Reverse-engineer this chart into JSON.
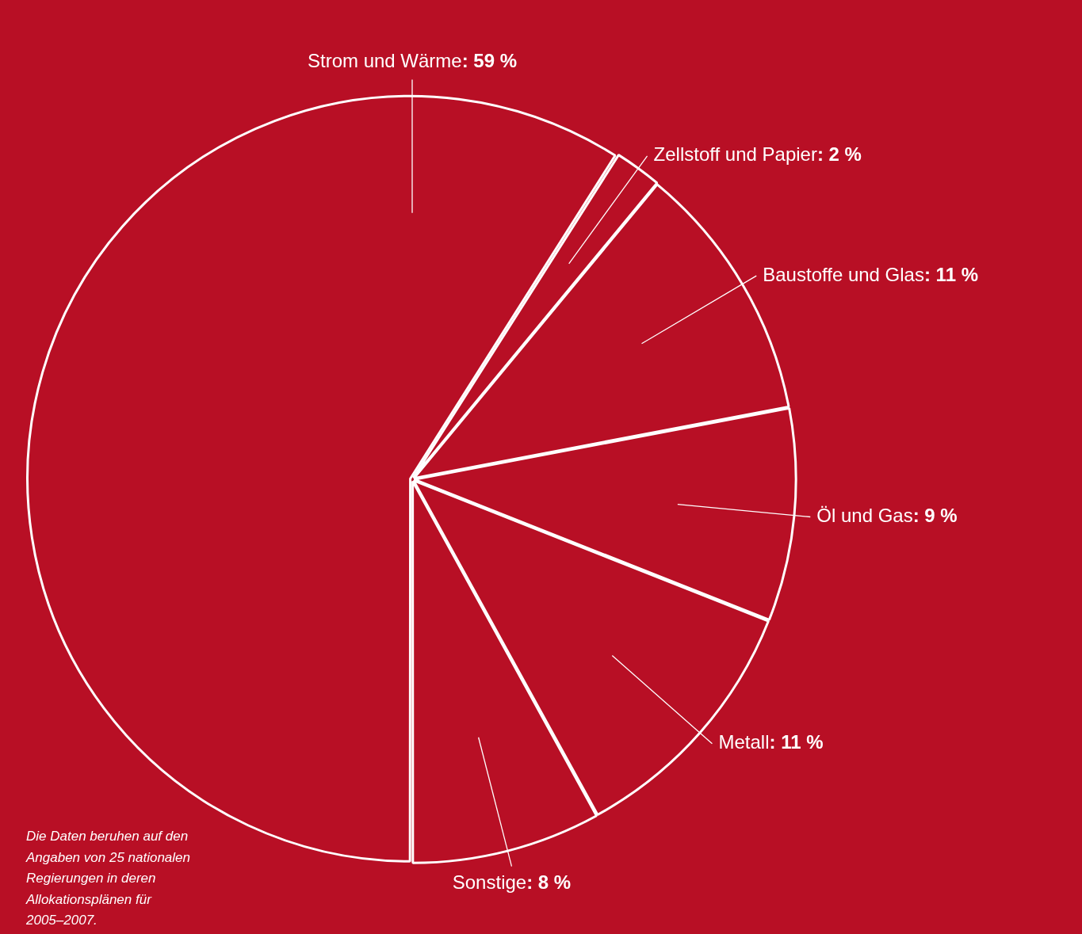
{
  "chart_data": {
    "type": "pie",
    "categories": [
      "Strom und Wärme",
      "Zellstoff und Papier",
      "Baustoffe und Glas",
      "Öl und Gas",
      "Metall",
      "Sonstige"
    ],
    "values": [
      59,
      2,
      11,
      9,
      11,
      8
    ],
    "value_labels": [
      ": 59 %",
      ": 2 %",
      ": 11 %",
      ": 9 %",
      ": 11 %",
      ": 8 %"
    ],
    "colors": [
      "#b80f25",
      "#b80f25",
      "#b80f25",
      "#b80f25",
      "#b80f25",
      "#b80f25"
    ],
    "legend": false,
    "annotations": [
      "Die Daten beruhen auf den Angaben von 25 nationalen Regierungen in deren Allokationsplänen für 2005–2007."
    ]
  }
}
